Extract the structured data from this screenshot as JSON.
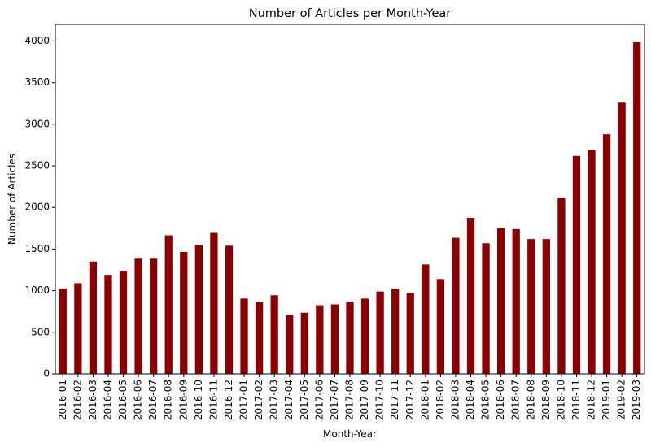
{
  "chart_data": {
    "type": "bar",
    "title": "Number of Articles per Month-Year",
    "xlabel": "Month-Year",
    "ylabel": "Number of Articles",
    "ylim": [
      0,
      4200
    ],
    "yticks": [
      0,
      500,
      1000,
      1500,
      2000,
      2500,
      3000,
      3500,
      4000
    ],
    "grid": false,
    "bar_color": "#8b0000",
    "categories": [
      "2016-01",
      "2016-02",
      "2016-03",
      "2016-04",
      "2016-05",
      "2016-06",
      "2016-07",
      "2016-08",
      "2016-09",
      "2016-10",
      "2016-11",
      "2016-12",
      "2017-01",
      "2017-02",
      "2017-03",
      "2017-04",
      "2017-05",
      "2017-06",
      "2017-07",
      "2017-08",
      "2017-09",
      "2017-10",
      "2017-11",
      "2017-12",
      "2018-01",
      "2018-02",
      "2018-03",
      "2018-04",
      "2018-05",
      "2018-06",
      "2018-07",
      "2018-08",
      "2018-09",
      "2018-10",
      "2018-11",
      "2018-12",
      "2019-01",
      "2019-02",
      "2019-03"
    ],
    "values": [
      1025,
      1090,
      1350,
      1190,
      1235,
      1385,
      1385,
      1665,
      1465,
      1550,
      1695,
      1540,
      905,
      860,
      945,
      710,
      735,
      825,
      835,
      870,
      905,
      990,
      1025,
      975,
      1315,
      1140,
      1635,
      1875,
      1570,
      1750,
      1740,
      1620,
      1620,
      2110,
      2620,
      2690,
      2880,
      3260,
      3985
    ]
  }
}
